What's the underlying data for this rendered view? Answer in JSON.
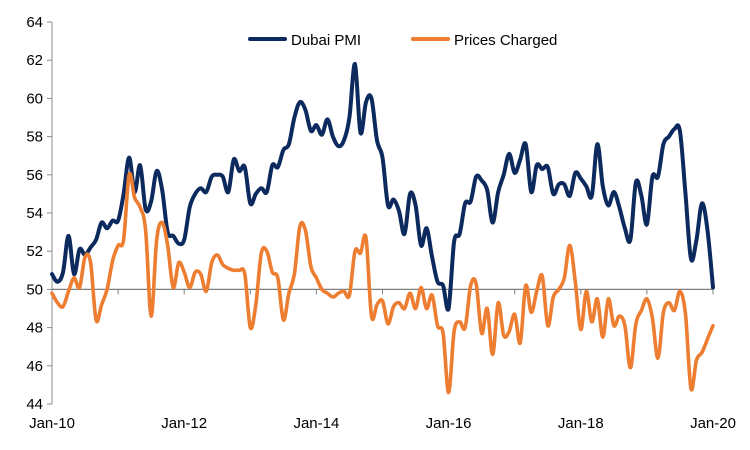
{
  "chart_data": {
    "type": "line",
    "title": "",
    "xlabel": "",
    "ylabel": "",
    "ylim": [
      44,
      64
    ],
    "y_ticks": [
      44,
      46,
      48,
      50,
      52,
      54,
      56,
      58,
      60,
      62,
      64
    ],
    "x_start": "2010-01",
    "x_end": "2020-01",
    "x_tick_labels": [
      {
        "date": "2010-01",
        "label": "Jan-10"
      },
      {
        "date": "2012-01",
        "label": "Jan-12"
      },
      {
        "date": "2014-01",
        "label": "Jan-14"
      },
      {
        "date": "2016-01",
        "label": "Jan-16"
      },
      {
        "date": "2018-01",
        "label": "Jan-18"
      },
      {
        "date": "2020-01",
        "label": "Jan-20"
      }
    ],
    "reference_line": 50,
    "grid": false,
    "legend_position": "top-center",
    "series": [
      {
        "name": "Dubai PMI",
        "color": "#0d2a5e",
        "points": [
          [
            "2010-01",
            50.8
          ],
          [
            "2010-02",
            50.4
          ],
          [
            "2010-03",
            50.9
          ],
          [
            "2010-04",
            52.8
          ],
          [
            "2010-05",
            50.8
          ],
          [
            "2010-06",
            52.1
          ],
          [
            "2010-07",
            51.8
          ],
          [
            "2010-08",
            52.2
          ],
          [
            "2010-09",
            52.6
          ],
          [
            "2010-10",
            53.5
          ],
          [
            "2010-11",
            53.2
          ],
          [
            "2010-12",
            53.6
          ],
          [
            "2011-01",
            53.6
          ],
          [
            "2011-02",
            55.0
          ],
          [
            "2011-03",
            56.9
          ],
          [
            "2011-04",
            55.1
          ],
          [
            "2011-05",
            56.5
          ],
          [
            "2011-06",
            54.2
          ],
          [
            "2011-07",
            54.6
          ],
          [
            "2011-08",
            56.2
          ],
          [
            "2011-09",
            55.2
          ],
          [
            "2011-10",
            53.0
          ],
          [
            "2011-11",
            52.8
          ],
          [
            "2011-12",
            52.4
          ],
          [
            "2012-01",
            52.6
          ],
          [
            "2012-02",
            54.3
          ],
          [
            "2012-03",
            55.0
          ],
          [
            "2012-04",
            55.3
          ],
          [
            "2012-05",
            55.1
          ],
          [
            "2012-06",
            55.9
          ],
          [
            "2012-07",
            56.0
          ],
          [
            "2012-08",
            55.9
          ],
          [
            "2012-09",
            55.1
          ],
          [
            "2012-10",
            56.8
          ],
          [
            "2012-11",
            56.2
          ],
          [
            "2012-12",
            56.4
          ],
          [
            "2013-01",
            54.5
          ],
          [
            "2013-02",
            55.0
          ],
          [
            "2013-03",
            55.3
          ],
          [
            "2013-04",
            55.1
          ],
          [
            "2013-05",
            56.5
          ],
          [
            "2013-06",
            56.4
          ],
          [
            "2013-07",
            57.3
          ],
          [
            "2013-08",
            57.6
          ],
          [
            "2013-09",
            59.0
          ],
          [
            "2013-10",
            59.8
          ],
          [
            "2013-11",
            59.4
          ],
          [
            "2013-12",
            58.3
          ],
          [
            "2014-01",
            58.6
          ],
          [
            "2014-02",
            58.1
          ],
          [
            "2014-03",
            58.9
          ],
          [
            "2014-04",
            58.0
          ],
          [
            "2014-05",
            57.5
          ],
          [
            "2014-06",
            57.8
          ],
          [
            "2014-07",
            59.0
          ],
          [
            "2014-08",
            61.8
          ],
          [
            "2014-09",
            58.2
          ],
          [
            "2014-10",
            59.8
          ],
          [
            "2014-11",
            60.0
          ],
          [
            "2014-12",
            57.8
          ],
          [
            "2015-01",
            56.9
          ],
          [
            "2015-02",
            54.4
          ],
          [
            "2015-03",
            54.7
          ],
          [
            "2015-04",
            54.1
          ],
          [
            "2015-05",
            52.9
          ],
          [
            "2015-06",
            55.0
          ],
          [
            "2015-07",
            54.4
          ],
          [
            "2015-08",
            52.3
          ],
          [
            "2015-09",
            53.2
          ],
          [
            "2015-10",
            51.7
          ],
          [
            "2015-11",
            50.4
          ],
          [
            "2015-12",
            50.2
          ],
          [
            "2016-01",
            49.0
          ],
          [
            "2016-02",
            52.5
          ],
          [
            "2016-03",
            52.9
          ],
          [
            "2016-04",
            54.5
          ],
          [
            "2016-05",
            54.6
          ],
          [
            "2016-06",
            55.9
          ],
          [
            "2016-07",
            55.7
          ],
          [
            "2016-08",
            55.2
          ],
          [
            "2016-09",
            53.5
          ],
          [
            "2016-10",
            55.1
          ],
          [
            "2016-11",
            56.0
          ],
          [
            "2016-12",
            57.1
          ],
          [
            "2017-01",
            56.1
          ],
          [
            "2017-02",
            56.8
          ],
          [
            "2017-03",
            57.6
          ],
          [
            "2017-04",
            55.1
          ],
          [
            "2017-05",
            56.5
          ],
          [
            "2017-06",
            56.3
          ],
          [
            "2017-07",
            56.4
          ],
          [
            "2017-08",
            55.0
          ],
          [
            "2017-09",
            55.5
          ],
          [
            "2017-10",
            55.5
          ],
          [
            "2017-11",
            54.9
          ],
          [
            "2017-12",
            56.1
          ],
          [
            "2018-01",
            55.8
          ],
          [
            "2018-02",
            55.4
          ],
          [
            "2018-03",
            54.9
          ],
          [
            "2018-04",
            57.6
          ],
          [
            "2018-05",
            55.4
          ],
          [
            "2018-06",
            54.4
          ],
          [
            "2018-07",
            55.1
          ],
          [
            "2018-08",
            54.3
          ],
          [
            "2018-09",
            53.2
          ],
          [
            "2018-10",
            52.6
          ],
          [
            "2018-11",
            55.6
          ],
          [
            "2018-12",
            54.9
          ],
          [
            "2019-01",
            53.4
          ],
          [
            "2019-02",
            55.9
          ],
          [
            "2019-03",
            55.9
          ],
          [
            "2019-04",
            57.6
          ],
          [
            "2019-05",
            58.0
          ],
          [
            "2019-06",
            58.4
          ],
          [
            "2019-07",
            58.3
          ],
          [
            "2019-08",
            55.0
          ],
          [
            "2019-09",
            51.6
          ],
          [
            "2019-10",
            52.6
          ],
          [
            "2019-11",
            54.5
          ],
          [
            "2019-12",
            53.1
          ],
          [
            "2020-01",
            50.1
          ]
        ]
      },
      {
        "name": "Prices Charged",
        "color": "#ed7d31",
        "points": [
          [
            "2010-01",
            49.8
          ],
          [
            "2010-02",
            49.3
          ],
          [
            "2010-03",
            49.1
          ],
          [
            "2010-04",
            49.9
          ],
          [
            "2010-05",
            50.6
          ],
          [
            "2010-06",
            50.1
          ],
          [
            "2010-07",
            51.7
          ],
          [
            "2010-08",
            51.4
          ],
          [
            "2010-09",
            48.4
          ],
          [
            "2010-10",
            49.2
          ],
          [
            "2010-11",
            50.0
          ],
          [
            "2010-12",
            51.5
          ],
          [
            "2011-01",
            52.3
          ],
          [
            "2011-02",
            52.6
          ],
          [
            "2011-03",
            56.0
          ],
          [
            "2011-04",
            54.8
          ],
          [
            "2011-05",
            54.3
          ],
          [
            "2011-06",
            53.1
          ],
          [
            "2011-07",
            48.6
          ],
          [
            "2011-08",
            52.6
          ],
          [
            "2011-09",
            53.5
          ],
          [
            "2011-10",
            52.3
          ],
          [
            "2011-11",
            50.1
          ],
          [
            "2011-12",
            51.4
          ],
          [
            "2012-01",
            50.9
          ],
          [
            "2012-02",
            50.1
          ],
          [
            "2012-03",
            50.9
          ],
          [
            "2012-04",
            50.8
          ],
          [
            "2012-05",
            49.9
          ],
          [
            "2012-06",
            51.4
          ],
          [
            "2012-07",
            51.8
          ],
          [
            "2012-08",
            51.3
          ],
          [
            "2012-09",
            51.1
          ],
          [
            "2012-10",
            51.0
          ],
          [
            "2012-11",
            51.0
          ],
          [
            "2012-12",
            50.8
          ],
          [
            "2013-01",
            48.0
          ],
          [
            "2013-02",
            49.2
          ],
          [
            "2013-03",
            51.9
          ],
          [
            "2013-04",
            52.0
          ],
          [
            "2013-05",
            50.9
          ],
          [
            "2013-06",
            50.6
          ],
          [
            "2013-07",
            48.4
          ],
          [
            "2013-08",
            49.8
          ],
          [
            "2013-09",
            50.8
          ],
          [
            "2013-10",
            53.3
          ],
          [
            "2013-11",
            53.1
          ],
          [
            "2013-12",
            51.2
          ],
          [
            "2014-01",
            50.6
          ],
          [
            "2014-02",
            50.0
          ],
          [
            "2014-03",
            49.8
          ],
          [
            "2014-04",
            49.6
          ],
          [
            "2014-05",
            49.8
          ],
          [
            "2014-06",
            49.9
          ],
          [
            "2014-07",
            49.7
          ],
          [
            "2014-08",
            52.0
          ],
          [
            "2014-09",
            51.9
          ],
          [
            "2014-10",
            52.7
          ],
          [
            "2014-11",
            48.6
          ],
          [
            "2014-12",
            49.2
          ],
          [
            "2015-01",
            49.4
          ],
          [
            "2015-02",
            48.2
          ],
          [
            "2015-03",
            49.1
          ],
          [
            "2015-04",
            49.3
          ],
          [
            "2015-05",
            49.0
          ],
          [
            "2015-06",
            49.8
          ],
          [
            "2015-07",
            49.0
          ],
          [
            "2015-08",
            50.1
          ],
          [
            "2015-09",
            49.0
          ],
          [
            "2015-10",
            49.7
          ],
          [
            "2015-11",
            48.1
          ],
          [
            "2015-12",
            47.7
          ],
          [
            "2016-01",
            44.6
          ],
          [
            "2016-02",
            47.8
          ],
          [
            "2016-03",
            48.3
          ],
          [
            "2016-04",
            48.0
          ],
          [
            "2016-05",
            50.2
          ],
          [
            "2016-06",
            50.3
          ],
          [
            "2016-07",
            47.7
          ],
          [
            "2016-08",
            49.0
          ],
          [
            "2016-09",
            46.6
          ],
          [
            "2016-10",
            49.3
          ],
          [
            "2016-11",
            47.6
          ],
          [
            "2016-12",
            47.8
          ],
          [
            "2017-01",
            48.7
          ],
          [
            "2017-02",
            47.2
          ],
          [
            "2017-03",
            50.2
          ],
          [
            "2017-04",
            48.8
          ],
          [
            "2017-05",
            49.9
          ],
          [
            "2017-06",
            50.7
          ],
          [
            "2017-07",
            48.1
          ],
          [
            "2017-08",
            49.6
          ],
          [
            "2017-09",
            50.0
          ],
          [
            "2017-10",
            50.6
          ],
          [
            "2017-11",
            52.3
          ],
          [
            "2017-12",
            50.4
          ],
          [
            "2018-01",
            47.9
          ],
          [
            "2018-02",
            49.9
          ],
          [
            "2018-03",
            48.3
          ],
          [
            "2018-04",
            49.5
          ],
          [
            "2018-05",
            47.5
          ],
          [
            "2018-06",
            49.5
          ],
          [
            "2018-07",
            48.1
          ],
          [
            "2018-08",
            48.6
          ],
          [
            "2018-09",
            48.1
          ],
          [
            "2018-10",
            45.9
          ],
          [
            "2018-11",
            48.2
          ],
          [
            "2018-12",
            48.9
          ],
          [
            "2019-01",
            49.5
          ],
          [
            "2019-02",
            48.5
          ],
          [
            "2019-03",
            46.4
          ],
          [
            "2019-04",
            48.8
          ],
          [
            "2019-05",
            49.3
          ],
          [
            "2019-06",
            48.9
          ],
          [
            "2019-07",
            49.9
          ],
          [
            "2019-08",
            48.7
          ],
          [
            "2019-09",
            44.8
          ],
          [
            "2019-10",
            46.3
          ],
          [
            "2019-11",
            46.7
          ],
          [
            "2019-12",
            47.4
          ],
          [
            "2020-01",
            48.1
          ]
        ]
      }
    ]
  }
}
